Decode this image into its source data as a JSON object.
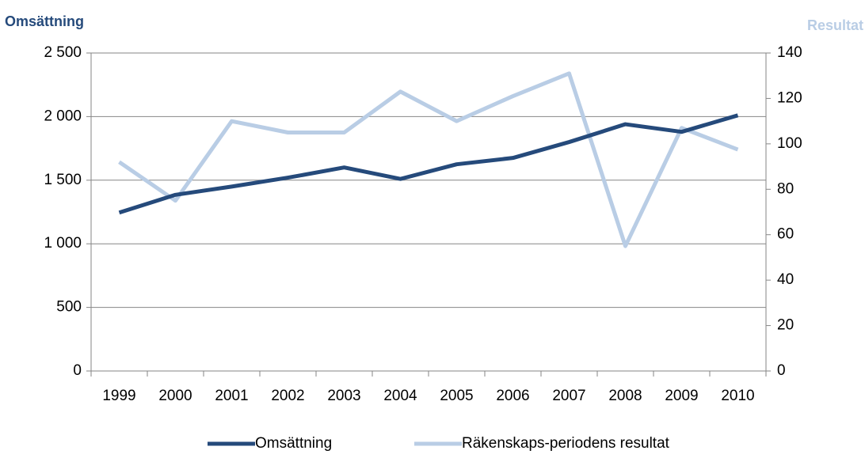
{
  "chart_data": {
    "type": "line",
    "y_label": "Omsättning",
    "y2_label": "Resultat",
    "categories": [
      "1999",
      "2000",
      "2001",
      "2002",
      "2003",
      "2004",
      "2005",
      "2006",
      "2007",
      "2008",
      "2009",
      "2010"
    ],
    "series": [
      {
        "name": "Omsättning",
        "color": "#254a7b",
        "values": [
          1245,
          1385,
          1450,
          1520,
          1600,
          1510,
          1625,
          1675,
          1800,
          1940,
          1880,
          2010
        ]
      },
      {
        "name": "Räkenskaps-periodens resultat",
        "color": "#b9cde5",
        "axis": "y2",
        "values": [
          92,
          75,
          110,
          105,
          105,
          123,
          110,
          121,
          131,
          55,
          107,
          97.5
        ]
      }
    ],
    "ylim": [
      0,
      2500
    ],
    "yticks": [
      0,
      500,
      {
        "value": 1000,
        "label": "1 000"
      },
      {
        "value": 1500,
        "label": "1 500"
      },
      {
        "value": 2000,
        "label": "2 000"
      },
      {
        "value": 2500,
        "label": "2 500"
      }
    ],
    "y2lim": [
      0,
      140
    ],
    "y2ticks": [
      0,
      20,
      40,
      60,
      80,
      100,
      120,
      140
    ],
    "grid": true,
    "legend": "bottom"
  }
}
